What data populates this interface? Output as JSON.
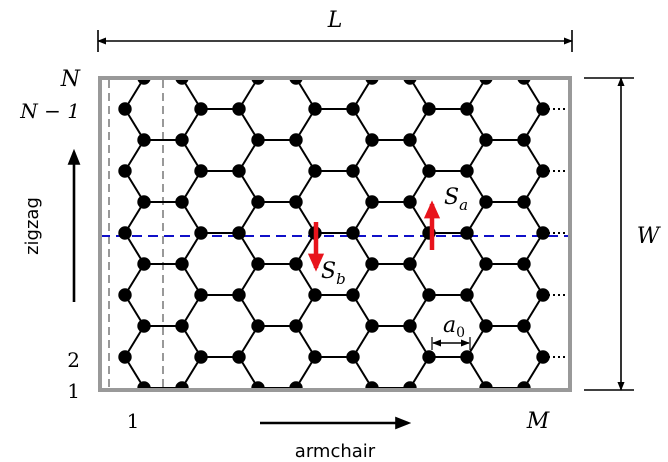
{
  "labels": {
    "length": "L",
    "width": "W",
    "row_top": "N",
    "row_second": "N − 1",
    "row_2": "2",
    "row_1": "1",
    "col_first": "1",
    "col_last": "M",
    "zigzag": "zigzag",
    "armchair": "armchair",
    "spin_a": "S",
    "spin_a_sub": "a",
    "spin_b": "S",
    "spin_b_sub": "b",
    "lattice_const": "a",
    "lattice_const_sub": "0"
  },
  "colors": {
    "frame": "#999999",
    "bond": "#000000",
    "sublattice_a": "#000000",
    "sublattice_b": "#ffffff",
    "cut_line": "#1010c8",
    "spin_arrow": "#e8141c",
    "guide_dash": "#999999"
  },
  "lattice": {
    "orientation": "zigzag vertical, armchair horizontal",
    "rows": "N",
    "columns": "M"
  }
}
